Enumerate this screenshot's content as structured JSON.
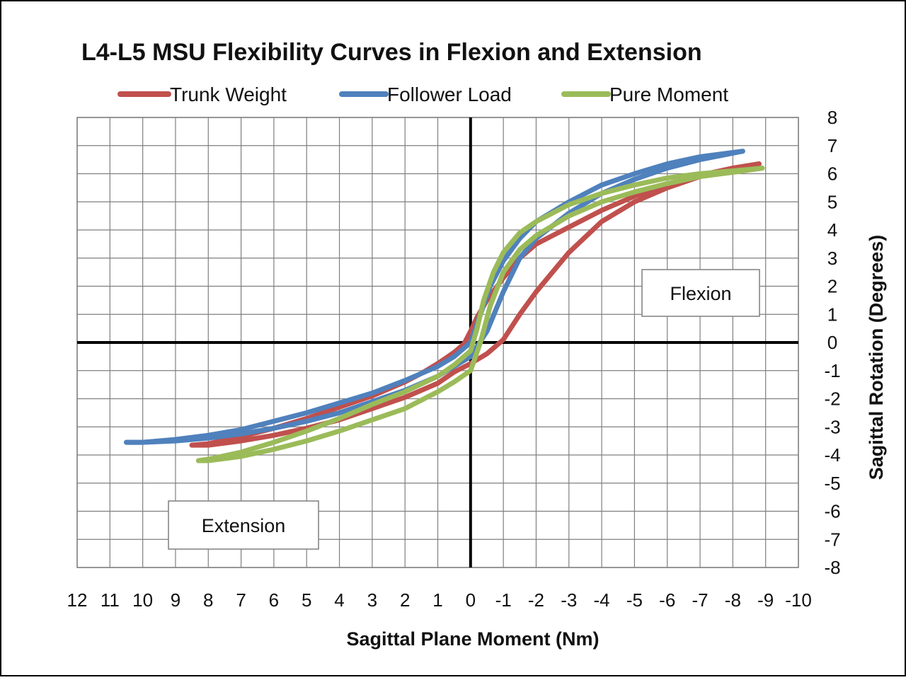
{
  "chart_data": {
    "type": "line",
    "title": "L4-L5 MSU Flexibility Curves in Flexion and Extension",
    "xlabel": "Sagittal Plane Moment (Nm)",
    "ylabel": "Sagittal Rotation (Degrees)",
    "x_reversed": true,
    "xlim": [
      12,
      -10
    ],
    "ylim": [
      -8,
      8
    ],
    "x_ticks": [
      12,
      11,
      10,
      9,
      8,
      7,
      6,
      5,
      4,
      3,
      2,
      1,
      0,
      -1,
      -2,
      -3,
      -4,
      -5,
      -6,
      -7,
      -8,
      -9,
      -10
    ],
    "y_ticks": [
      8,
      7,
      6,
      5,
      4,
      3,
      2,
      1,
      0,
      -1,
      -2,
      -3,
      -4,
      -5,
      -6,
      -7,
      -8
    ],
    "grid": true,
    "legend_position": "top",
    "annotations": [
      {
        "key": "flexion",
        "text": "Flexion",
        "x": -7.1,
        "y": 1.8
      },
      {
        "key": "extension",
        "text": "Extension",
        "x": 6.9,
        "y": -6.5
      }
    ],
    "series": [
      {
        "name": "Trunk Weight",
        "color": "#c0504d",
        "upper_x": [
          8.5,
          8,
          7,
          6,
          5,
          4,
          3,
          2,
          1.5,
          1,
          0.5,
          0.2,
          0,
          -0.2,
          -0.5,
          -1,
          -1.5,
          -2,
          -3,
          -4,
          -5,
          -6,
          -7,
          -8,
          -8.8
        ],
        "upper_y": [
          -3.65,
          -3.6,
          -3.35,
          -3.05,
          -2.7,
          -2.3,
          -1.9,
          -1.4,
          -1.1,
          -0.75,
          -0.35,
          -0.05,
          0.4,
          0.9,
          1.5,
          2.3,
          3.0,
          3.5,
          4.1,
          4.7,
          5.2,
          5.6,
          5.95,
          6.2,
          6.35
        ],
        "lower_x": [
          8.5,
          8,
          7,
          6,
          5,
          4,
          3,
          2,
          1,
          0.5,
          0,
          -0.5,
          -1,
          -1.5,
          -2,
          -2.5,
          -3,
          -4,
          -5,
          -6,
          -7,
          -8,
          -8.8
        ],
        "lower_y": [
          -3.65,
          -3.65,
          -3.5,
          -3.3,
          -3.05,
          -2.75,
          -2.35,
          -1.95,
          -1.45,
          -1.05,
          -0.75,
          -0.4,
          0.1,
          1.0,
          1.8,
          2.5,
          3.2,
          4.3,
          5.0,
          5.5,
          5.9,
          6.2,
          6.35
        ]
      },
      {
        "name": "Follower Load",
        "color": "#4f81bd",
        "upper_x": [
          10.5,
          10,
          9,
          8,
          7,
          6,
          5,
          4,
          3,
          2,
          1,
          0.5,
          0,
          -0.3,
          -0.6,
          -1,
          -1.5,
          -2,
          -3,
          -4,
          -5,
          -6,
          -7,
          -8.3
        ],
        "upper_y": [
          -3.55,
          -3.55,
          -3.45,
          -3.3,
          -3.1,
          -2.8,
          -2.5,
          -2.15,
          -1.8,
          -1.35,
          -0.85,
          -0.5,
          0,
          1.0,
          2.0,
          2.9,
          3.7,
          4.3,
          5.0,
          5.6,
          6.0,
          6.35,
          6.6,
          6.8
        ],
        "lower_x": [
          10.5,
          10,
          9,
          8,
          7,
          6,
          5,
          4,
          3,
          2,
          1,
          0.5,
          0,
          -0.5,
          -1,
          -1.5,
          -2,
          -3,
          -4,
          -5,
          -6,
          -7,
          -8.3
        ],
        "lower_y": [
          -3.55,
          -3.55,
          -3.5,
          -3.4,
          -3.25,
          -3.05,
          -2.8,
          -2.5,
          -2.1,
          -1.7,
          -1.2,
          -0.85,
          -0.5,
          0.4,
          1.8,
          3.0,
          3.7,
          4.6,
          5.3,
          5.8,
          6.2,
          6.5,
          6.8
        ]
      },
      {
        "name": "Pure Moment",
        "color": "#9bbb59",
        "upper_x": [
          8.3,
          8,
          7,
          6,
          5,
          4,
          3,
          2,
          1,
          0.5,
          0,
          -0.2,
          -0.4,
          -0.7,
          -1,
          -1.5,
          -2,
          -3,
          -4,
          -5,
          -6,
          -7,
          -8,
          -8.9
        ],
        "upper_y": [
          -4.2,
          -4.15,
          -3.9,
          -3.55,
          -3.15,
          -2.7,
          -2.2,
          -1.75,
          -1.2,
          -0.8,
          -0.3,
          0.5,
          1.5,
          2.5,
          3.2,
          3.9,
          4.3,
          4.9,
          5.3,
          5.6,
          5.85,
          6.0,
          6.1,
          6.2
        ],
        "lower_x": [
          8.3,
          8,
          7,
          6,
          5,
          4,
          3,
          2,
          1,
          0.5,
          0,
          -0.3,
          -0.6,
          -1,
          -1.5,
          -2,
          -3,
          -4,
          -5,
          -6,
          -7,
          -8,
          -8.9
        ],
        "lower_y": [
          -4.2,
          -4.2,
          -4.05,
          -3.8,
          -3.5,
          -3.15,
          -2.75,
          -2.35,
          -1.75,
          -1.4,
          -1.0,
          0.0,
          1.3,
          2.5,
          3.3,
          3.8,
          4.5,
          5.0,
          5.35,
          5.65,
          5.9,
          6.05,
          6.2
        ]
      }
    ]
  }
}
